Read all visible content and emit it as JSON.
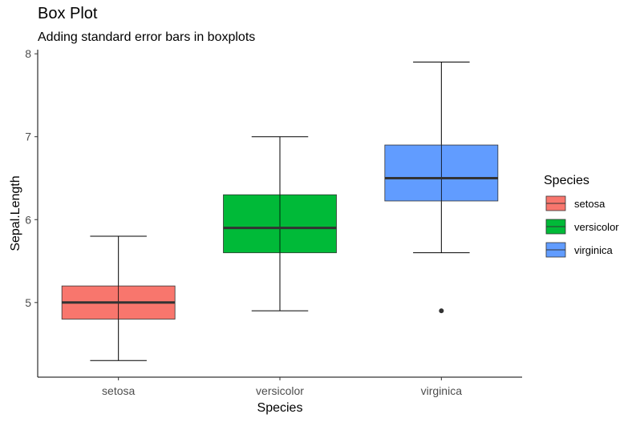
{
  "title": "Box Plot",
  "subtitle": "Adding standard error bars in boxplots",
  "chart_data": {
    "type": "box",
    "xlabel": "Species",
    "ylabel": "Sepal.Length",
    "categories": [
      "setosa",
      "versicolor",
      "virginica"
    ],
    "ylim": [
      4.1,
      8.05
    ],
    "yticks": [
      5,
      6,
      7,
      8
    ],
    "legend_title": "Species",
    "legend_position": "right",
    "grid": false,
    "boxes": [
      {
        "name": "setosa",
        "color": "#F8766D",
        "whisker_low": 4.3,
        "q1": 4.8,
        "median": 5.0,
        "q3": 5.2,
        "whisker_high": 5.8,
        "outliers": []
      },
      {
        "name": "versicolor",
        "color": "#00BA38",
        "whisker_low": 4.9,
        "q1": 5.6,
        "median": 5.9,
        "q3": 6.3,
        "whisker_high": 7.0,
        "outliers": []
      },
      {
        "name": "virginica",
        "color": "#619CFF",
        "whisker_low": 5.6,
        "q1": 6.225,
        "median": 6.5,
        "q3": 6.9,
        "whisker_high": 7.9,
        "outliers": [
          4.9
        ]
      }
    ]
  }
}
